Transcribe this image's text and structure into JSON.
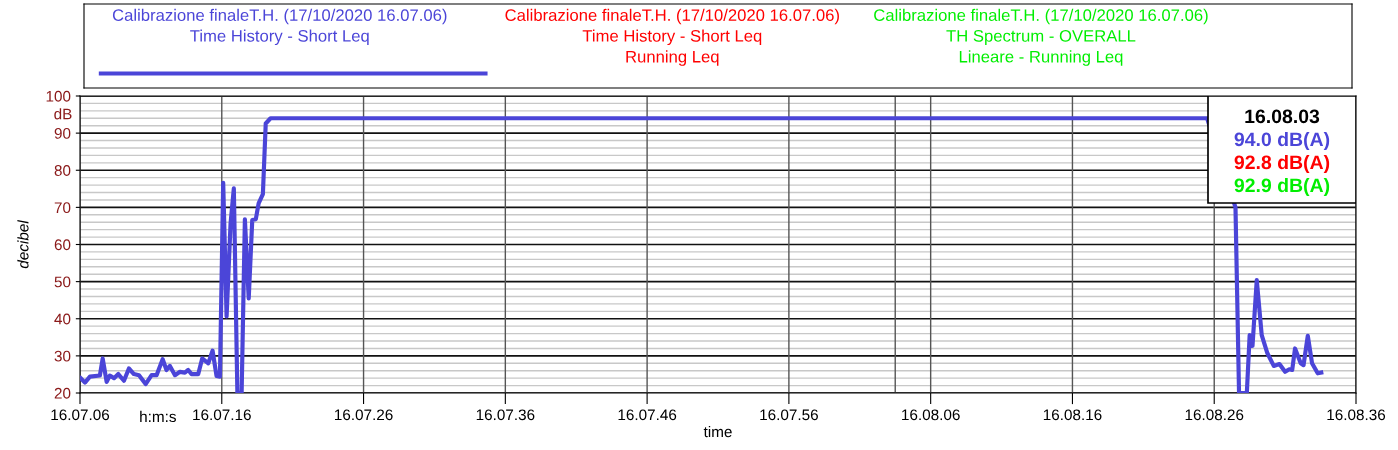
{
  "chart_data": {
    "type": "line",
    "xlabel": "time",
    "ylabel": "decibel",
    "x": [
      "2020-10-17T16:07:06.05",
      "2020-10-17T16:07:06.35",
      "2020-10-17T16:07:06.70",
      "2020-10-17T16:07:07.40",
      "2020-10-17T16:07:07.60",
      "2020-10-17T16:07:07.88",
      "2020-10-17T16:07:08.10",
      "2020-10-17T16:07:08.40",
      "2020-10-17T16:07:08.70",
      "2020-10-17T16:07:09.10",
      "2020-10-17T16:07:09.45",
      "2020-10-17T16:07:09.80",
      "2020-10-17T16:07:10.16",
      "2020-10-17T16:07:10.63",
      "2020-10-17T16:07:11.05",
      "2020-10-17T16:07:11.40",
      "2020-10-17T16:07:11.83",
      "2020-10-17T16:07:12.10",
      "2020-10-17T16:07:12.34",
      "2020-10-17T16:07:12.70",
      "2020-10-17T16:07:13.05",
      "2020-10-17T16:07:13.40",
      "2020-10-17T16:07:13.63",
      "2020-10-17T16:07:13.87",
      "2020-10-17T16:07:14.34",
      "2020-10-17T16:07:14.62",
      "2020-10-17T16:07:15.05",
      "2020-10-17T16:07:15.35",
      "2020-10-17T16:07:15.63",
      "2020-10-17T16:07:15.87",
      "2020-10-17T16:07:16.10",
      "2020-10-17T16:07:16.34",
      "2020-10-17T16:07:16.62",
      "2020-10-17T16:07:16.85",
      "2020-10-17T16:07:17.10",
      "2020-10-17T16:07:17.40",
      "2020-10-17T16:07:17.63",
      "2020-10-17T16:07:17.90",
      "2020-10-17T16:07:18.15",
      "2020-10-17T16:07:18.40",
      "2020-10-17T16:07:18.60",
      "2020-10-17T16:07:18.90",
      "2020-10-17T16:07:19.10",
      "2020-10-17T16:07:19.44",
      "2020-10-17T16:07:36",
      "2020-10-17T16:07:56",
      "2020-10-17T16:08:16",
      "2020-10-17T16:08:25.50",
      "2020-10-17T16:08:27.50",
      "2020-10-17T16:08:27.75",
      "2020-10-17T16:08:28.30",
      "2020-10-17T16:08:28.50",
      "2020-10-17T16:08:28.70",
      "2020-10-17T16:08:29.00",
      "2020-10-17T16:08:29.35",
      "2020-10-17T16:08:29.75",
      "2020-10-17T16:08:30.20",
      "2020-10-17T16:08:30.60",
      "2020-10-17T16:08:31.00",
      "2020-10-17T16:08:31.30",
      "2020-10-17T16:08:31.50",
      "2020-10-17T16:08:31.70",
      "2020-10-17T16:08:32.10",
      "2020-10-17T16:08:32.30",
      "2020-10-17T16:08:32.60",
      "2020-10-17T16:08:32.90",
      "2020-10-17T16:08:33.30",
      "2020-10-17T16:08:33.55"
    ],
    "series": [
      {
        "name": "Calibrazione finaleT.H. (17/10/2020 16.07.06)\nTime History - Short Leq",
        "color": "#4b45d8",
        "values": [
          24.0,
          22.8,
          24.4,
          24.7,
          29.3,
          23.0,
          24.7,
          24.0,
          25.1,
          23.3,
          26.6,
          25.1,
          24.8,
          22.4,
          24.8,
          24.8,
          29.1,
          26.2,
          27.3,
          24.8,
          25.7,
          25.5,
          26.2,
          25.1,
          25.1,
          29.3,
          28.0,
          31.4,
          24.6,
          24.4,
          76.6,
          40.6,
          65.7,
          75.1,
          20,
          20,
          66.8,
          45.5,
          66.6,
          66.8,
          71.1,
          73.6,
          92.6,
          94.0,
          94.0,
          94.0,
          94.0,
          94.0,
          70,
          20,
          20,
          35.6,
          32.7,
          50.4,
          35.6,
          30.7,
          27.3,
          27.8,
          25.7,
          26.4,
          26.2,
          32.0,
          28.0,
          27.5,
          35.4,
          28.0,
          25.3,
          25.5
        ]
      },
      {
        "name": "Calibrazione finaleT.H. (17/10/2020 16.07.06)\nTime History - Short Leq\nRunning Leq",
        "color": "#ff0000",
        "values": [
          null,
          null,
          null,
          null,
          null,
          null,
          null,
          null,
          null,
          null,
          null,
          null,
          null,
          null,
          null,
          null,
          null,
          null,
          null,
          null,
          null,
          null,
          null,
          null,
          null,
          null,
          null,
          null,
          null,
          null,
          null,
          null,
          null,
          null,
          null,
          null,
          null,
          null,
          null,
          null,
          null,
          null,
          null,
          null,
          null,
          null,
          null,
          null,
          null,
          null,
          null,
          null,
          null,
          null,
          null,
          null,
          null,
          null,
          null,
          null,
          null,
          null,
          null,
          null,
          null,
          null,
          null,
          null
        ]
      },
      {
        "name": "Calibrazione finaleT.H. (17/10/2020 16.07.06)\nTH Spectrum - OVERALL\nLineare - Running Leq",
        "color": "#00ee00",
        "values": [
          null,
          null,
          null,
          null,
          null,
          null,
          null,
          null,
          null,
          null,
          null,
          null,
          null,
          null,
          null,
          null,
          null,
          null,
          null,
          null,
          null,
          null,
          null,
          null,
          null,
          null,
          null,
          null,
          null,
          null,
          null,
          null,
          null,
          null,
          null,
          null,
          null,
          null,
          null,
          null,
          null,
          null,
          null,
          null,
          null,
          null,
          null,
          null,
          null,
          null,
          null,
          null,
          null,
          null,
          null,
          null,
          null,
          null,
          null,
          null,
          null,
          null,
          null,
          null,
          null,
          null,
          null,
          null
        ]
      }
    ],
    "xlim": [
      "2020-10-17T16:07:06",
      "2020-10-17T16:08:36"
    ],
    "xticks": [
      {
        "value": "2020-10-17T16:07:06",
        "label": "16.07.06"
      },
      {
        "value": "2020-10-17T16:07:16",
        "label": "16.07.16"
      },
      {
        "value": "2020-10-17T16:07:26",
        "label": "16.07.26"
      },
      {
        "value": "2020-10-17T16:07:36",
        "label": "16.07.36"
      },
      {
        "value": "2020-10-17T16:07:46",
        "label": "16.07.46"
      },
      {
        "value": "2020-10-17T16:07:56",
        "label": "16.07.56"
      },
      {
        "value": "2020-10-17T16:08:06",
        "label": "16.08.06"
      },
      {
        "value": "2020-10-17T16:08:16",
        "label": "16.08.16"
      },
      {
        "value": "2020-10-17T16:08:26",
        "label": "16.08.26"
      },
      {
        "value": "2020-10-17T16:08:36",
        "label": "16.08.36"
      }
    ],
    "ylim": [
      20,
      100
    ],
    "yticks": [
      20,
      {
        "value": 22,
        "label": null
      },
      {
        "value": 24,
        "label": null
      },
      {
        "value": 26,
        "label": null
      },
      {
        "value": 28,
        "label": null
      },
      30,
      {
        "value": 32,
        "label": null
      },
      {
        "value": 34,
        "label": null
      },
      {
        "value": 36,
        "label": null
      },
      {
        "value": 38,
        "label": null
      },
      40,
      {
        "value": 42,
        "label": null
      },
      {
        "value": 44,
        "label": null
      },
      {
        "value": 46,
        "label": null
      },
      {
        "value": 48,
        "label": null
      },
      50,
      {
        "value": 52,
        "label": null
      },
      {
        "value": 54,
        "label": null
      },
      {
        "value": 56,
        "label": null
      },
      {
        "value": 58,
        "label": null
      },
      60,
      {
        "value": 62,
        "label": null
      },
      {
        "value": 64,
        "label": null
      },
      {
        "value": 66,
        "label": null
      },
      {
        "value": 68,
        "label": null
      },
      70,
      {
        "value": 72,
        "label": null
      },
      {
        "value": 74,
        "label": null
      },
      {
        "value": 76,
        "label": null
      },
      {
        "value": 78,
        "label": null
      },
      80,
      {
        "value": 82,
        "label": null
      },
      {
        "value": 84,
        "label": null
      },
      {
        "value": 86,
        "label": null
      },
      {
        "value": 88,
        "label": null
      },
      90,
      {
        "value": 92,
        "label": null
      },
      {
        "value": 94,
        "label": null
      },
      {
        "value": 96,
        "label": null
      },
      {
        "value": 98,
        "label": null
      },
      100
    ],
    "ref_lines": [
      {
        "axis": "x",
        "value": "2020-10-17T16:08:03.50",
        "color": "#555555"
      }
    ],
    "annotations": [
      "h:m:s",
      "dB",
      "16.08.03",
      "94.0 dB(A)",
      "92.8 dB(A)",
      "92.9 dB(A)"
    ],
    "grid": true,
    "legend": "top",
    "line_style": "solid",
    "marker": "none"
  }
}
